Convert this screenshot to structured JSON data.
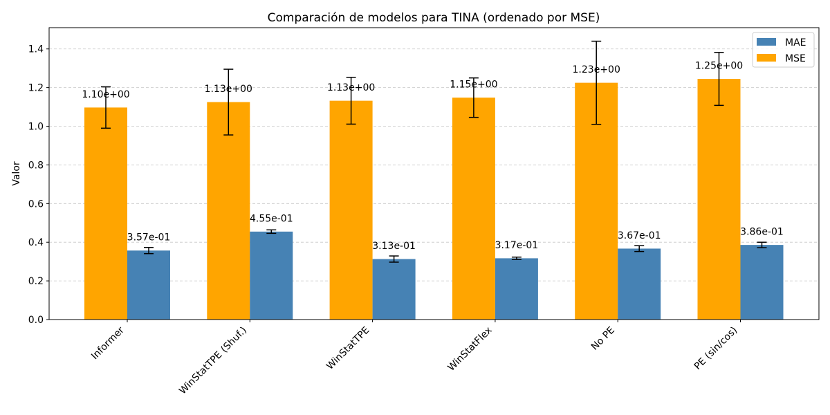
{
  "chart_data": {
    "type": "bar",
    "title": "Comparación de modelos para TINA (ordenado por MSE)",
    "xlabel": "",
    "ylabel": "Valor",
    "categories": [
      "Informer",
      "WinStatTPE (Shuf.)",
      "WinStatTPE",
      "WinStatFlex",
      "No PE",
      "PE (sin/cos)"
    ],
    "ylim": [
      0,
      1.51
    ],
    "yticks": [
      0.0,
      0.2,
      0.4,
      0.6,
      0.8,
      1.0,
      1.2,
      1.4
    ],
    "ytick_labels": [
      "0.0",
      "0.2",
      "0.4",
      "0.6",
      "0.8",
      "1.0",
      "1.2",
      "1.4"
    ],
    "grid": "y-dashed",
    "legend_position": "top-right",
    "series": [
      {
        "name": "MSE",
        "color": "#ffa500",
        "values": [
          1.097,
          1.125,
          1.132,
          1.148,
          1.225,
          1.245
        ],
        "errors": [
          0.107,
          0.17,
          0.121,
          0.102,
          0.215,
          0.137
        ],
        "labels": [
          "1.10e+00",
          "1.13e+00",
          "1.13e+00",
          "1.15e+00",
          "1.23e+00",
          "1.25e+00"
        ]
      },
      {
        "name": "MAE",
        "color": "#4682b4",
        "values": [
          0.357,
          0.455,
          0.313,
          0.317,
          0.367,
          0.386
        ],
        "errors": [
          0.016,
          0.009,
          0.016,
          0.006,
          0.015,
          0.014
        ],
        "labels": [
          "3.57e-01",
          "4.55e-01",
          "3.13e-01",
          "3.17e-01",
          "3.67e-01",
          "3.86e-01"
        ]
      }
    ],
    "legend_order": [
      "MAE",
      "MSE"
    ]
  }
}
